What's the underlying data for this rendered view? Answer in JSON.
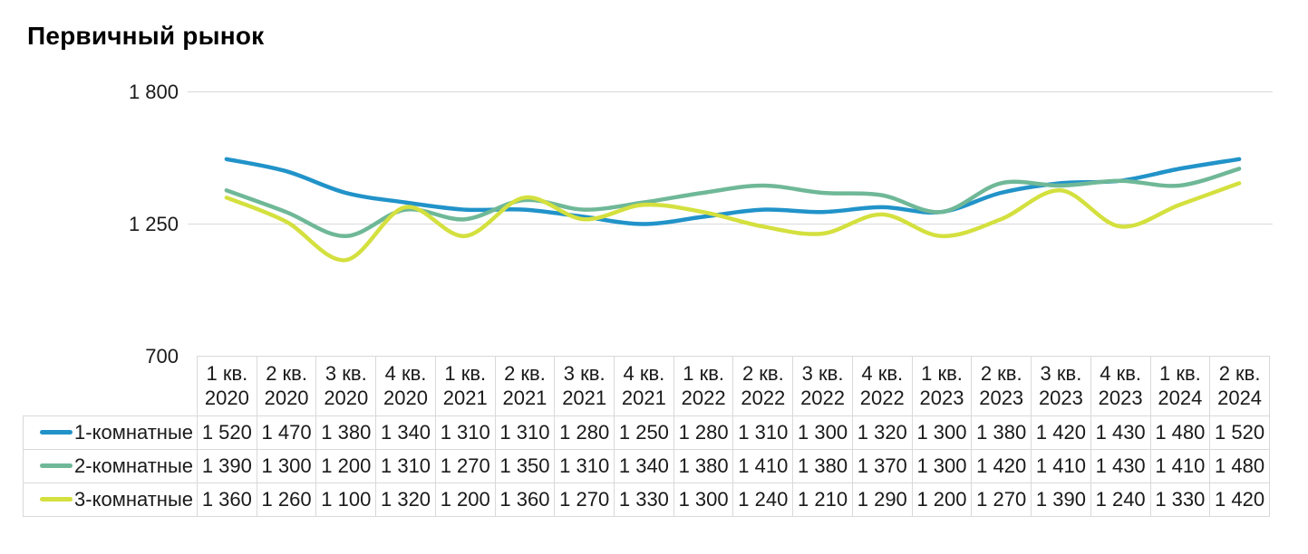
{
  "title": "Первичный рынок",
  "colors": {
    "series_1": "#2193c9",
    "series_2": "#6fb897",
    "series_3": "#d4e03e",
    "grid": "#d9d9d9",
    "table_border": "#d9d9d9",
    "text": "#1a1a1a",
    "title_text": "#000000"
  },
  "y_axis": {
    "ticks": [
      {
        "label": "1 800",
        "value": 1800
      },
      {
        "label": "1 250",
        "value": 1250
      },
      {
        "label": "700",
        "value": 700
      }
    ]
  },
  "chart_data": {
    "type": "line",
    "title": "Первичный рынок",
    "smooth": true,
    "grid": "horizontal-only",
    "legend_position": "table-left",
    "ylim": [
      700,
      1800
    ],
    "grid_values": [
      1800,
      1250
    ],
    "categories": [
      {
        "quarter": "1 кв.",
        "year": "2020"
      },
      {
        "quarter": "2 кв.",
        "year": "2020"
      },
      {
        "quarter": "3 кв.",
        "year": "2020"
      },
      {
        "quarter": "4 кв.",
        "year": "2020"
      },
      {
        "quarter": "1 кв.",
        "year": "2021"
      },
      {
        "quarter": "2 кв.",
        "year": "2021"
      },
      {
        "quarter": "3 кв.",
        "year": "2021"
      },
      {
        "quarter": "4 кв.",
        "year": "2021"
      },
      {
        "quarter": "1 кв.",
        "year": "2022"
      },
      {
        "quarter": "2 кв.",
        "year": "2022"
      },
      {
        "quarter": "3 кв.",
        "year": "2022"
      },
      {
        "quarter": "4 кв.",
        "year": "2022"
      },
      {
        "quarter": "1 кв.",
        "year": "2023"
      },
      {
        "quarter": "2 кв.",
        "year": "2023"
      },
      {
        "quarter": "3 кв.",
        "year": "2023"
      },
      {
        "quarter": "4 кв.",
        "year": "2023"
      },
      {
        "quarter": "1 кв.",
        "year": "2024"
      },
      {
        "quarter": "2 кв.",
        "year": "2024"
      }
    ],
    "series": [
      {
        "name": "1-комнатные",
        "color": "#2193c9",
        "values": [
          1520,
          1470,
          1380,
          1340,
          1310,
          1310,
          1280,
          1250,
          1280,
          1310,
          1300,
          1320,
          1300,
          1380,
          1420,
          1430,
          1480,
          1520
        ]
      },
      {
        "name": "2-комнатные",
        "color": "#6fb897",
        "values": [
          1390,
          1300,
          1200,
          1310,
          1270,
          1350,
          1310,
          1340,
          1380,
          1410,
          1380,
          1370,
          1300,
          1420,
          1410,
          1430,
          1410,
          1480
        ]
      },
      {
        "name": "3-комнатные",
        "color": "#d4e03e",
        "values": [
          1360,
          1260,
          1100,
          1320,
          1200,
          1360,
          1270,
          1330,
          1300,
          1240,
          1210,
          1290,
          1200,
          1270,
          1390,
          1240,
          1330,
          1420
        ]
      }
    ]
  }
}
